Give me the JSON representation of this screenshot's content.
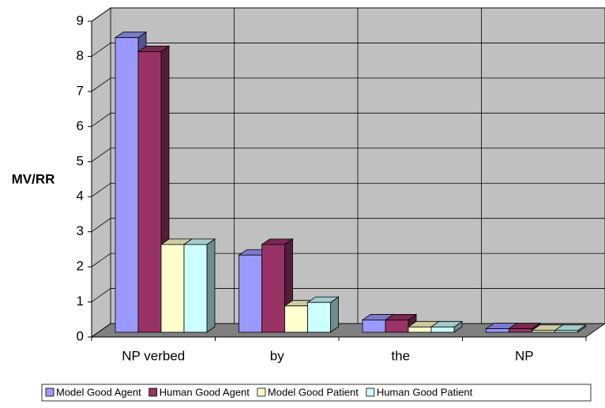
{
  "chart_data": {
    "type": "bar3d",
    "y_label": "MV/RR",
    "categories": [
      "NP verbed",
      "by",
      "the",
      "NP"
    ],
    "series": [
      {
        "name": "Model Good Agent",
        "color": "#9999ff",
        "values": [
          8.4,
          2.2,
          0.35,
          0.1
        ]
      },
      {
        "name": "Human Good Agent",
        "color": "#993366",
        "values": [
          8.0,
          2.5,
          0.35,
          0.1
        ]
      },
      {
        "name": "Model Good Patient",
        "color": "#ffffcc",
        "values": [
          2.5,
          0.75,
          0.15,
          0.05
        ]
      },
      {
        "name": "Human Good Patient",
        "color": "#ccffff",
        "values": [
          2.5,
          0.85,
          0.15,
          0.05
        ]
      }
    ],
    "ylim": [
      0,
      9
    ],
    "yticks": [
      0,
      1,
      2,
      3,
      4,
      5,
      6,
      7,
      8,
      9
    ],
    "grid": true,
    "legend": "bottom"
  }
}
